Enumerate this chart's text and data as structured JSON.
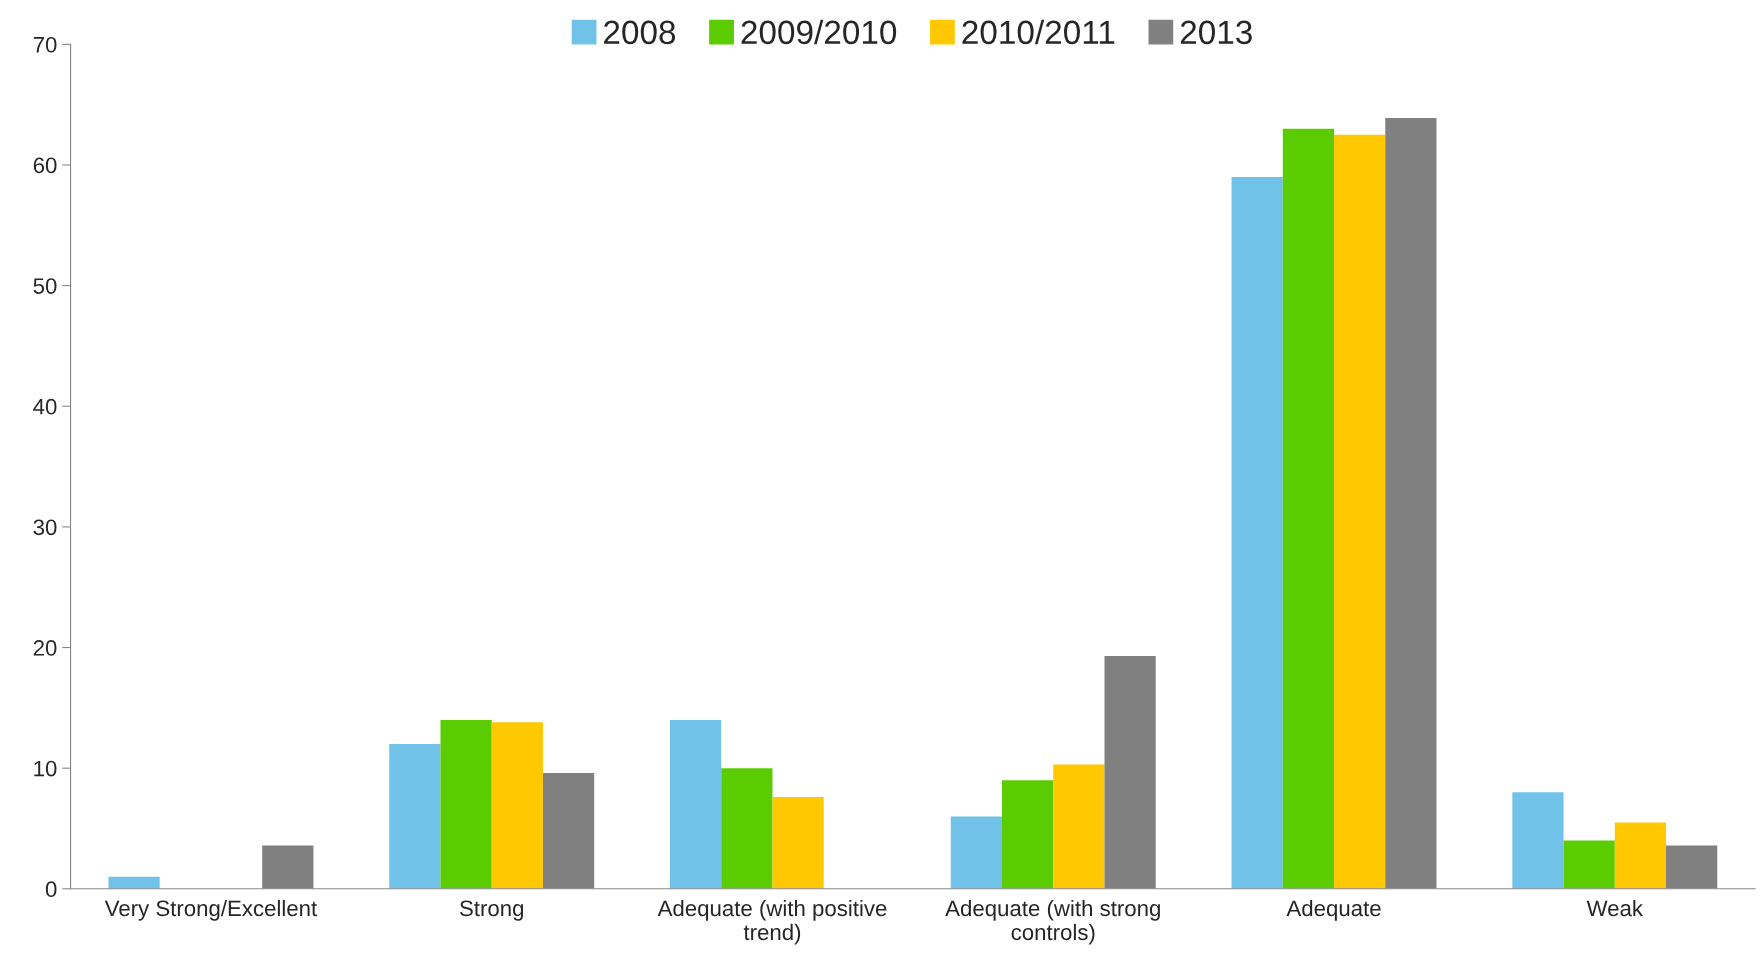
{
  "chart_data": {
    "type": "bar",
    "categories": [
      "Very Strong/Excellent",
      "Strong",
      "Adequate (with positive trend)",
      "Adequate (with strong controls)",
      "Adequate",
      "Weak"
    ],
    "series": [
      {
        "name": "2008",
        "color": "#70c2e8",
        "values": [
          1,
          12,
          14,
          6,
          59,
          8
        ]
      },
      {
        "name": "2009/2010",
        "color": "#5acc00",
        "values": [
          null,
          14,
          10,
          9,
          63,
          4
        ]
      },
      {
        "name": "2010/2011",
        "color": "#ffc800",
        "values": [
          null,
          13.8,
          7.6,
          10.3,
          62.5,
          5.5
        ]
      },
      {
        "name": "2013",
        "color": "#808080",
        "values": [
          3.6,
          9.6,
          null,
          19.3,
          63.9,
          3.6
        ]
      }
    ],
    "ylim": [
      0,
      70
    ],
    "yticks": [
      0,
      10,
      20,
      30,
      40,
      50,
      60,
      70
    ],
    "grid": false,
    "legend": "top"
  }
}
